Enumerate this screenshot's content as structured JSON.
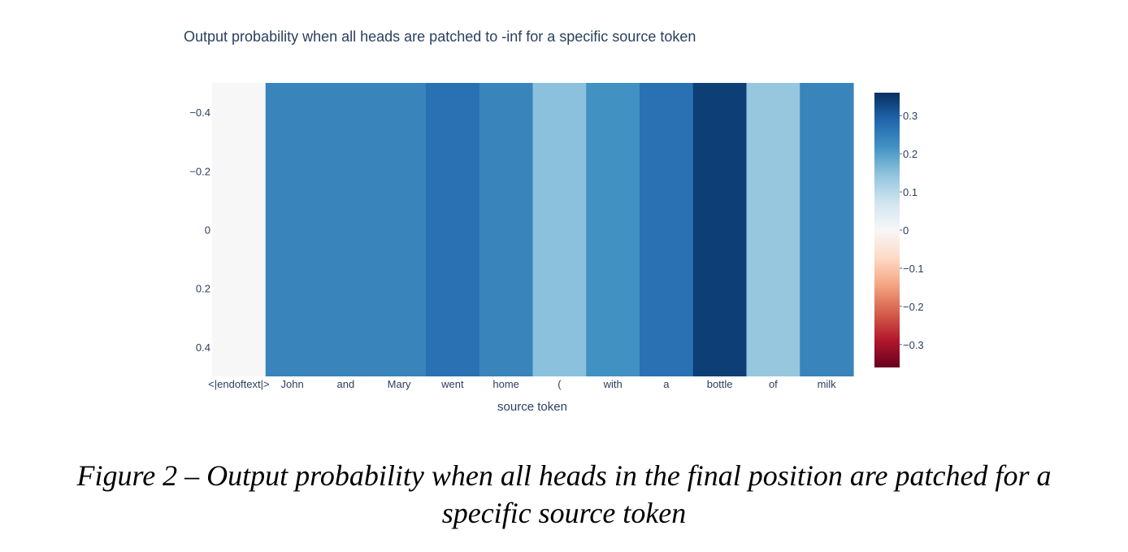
{
  "chart_data": {
    "type": "heatmap",
    "title": "Output probability when all heads are patched to -inf for a specific source token",
    "xlabel": "source token",
    "ylabel": "",
    "categories": [
      "<|endoftext|>",
      "John",
      "and",
      "Mary",
      "went",
      "home",
      "(",
      "with",
      "a",
      "bottle",
      "of",
      "milk"
    ],
    "values": [
      0.0,
      0.24,
      0.24,
      0.24,
      0.27,
      0.24,
      0.15,
      0.22,
      0.27,
      0.34,
      0.14,
      0.24
    ],
    "yticks": [
      -0.4,
      -0.2,
      0,
      0.2,
      0.4
    ],
    "yticklabels": [
      "−0.4",
      "−0.2",
      "0",
      "0.2",
      "0.4"
    ],
    "ylim": [
      -0.5,
      0.5
    ],
    "colorscale": "RdBu",
    "zlim": [
      -0.36,
      0.36
    ],
    "colorbar": {
      "ticks": [
        0.3,
        0.2,
        0.1,
        0,
        -0.1,
        -0.2,
        -0.3
      ],
      "ticklabels": [
        "0.3",
        "0.2",
        "0.1",
        "0",
        "−0.1",
        "−0.2",
        "−0.3"
      ]
    }
  },
  "caption": {
    "line1": "Figure 2 – Output probability when all heads in the final position are patched for a",
    "line2": "specific source token"
  }
}
